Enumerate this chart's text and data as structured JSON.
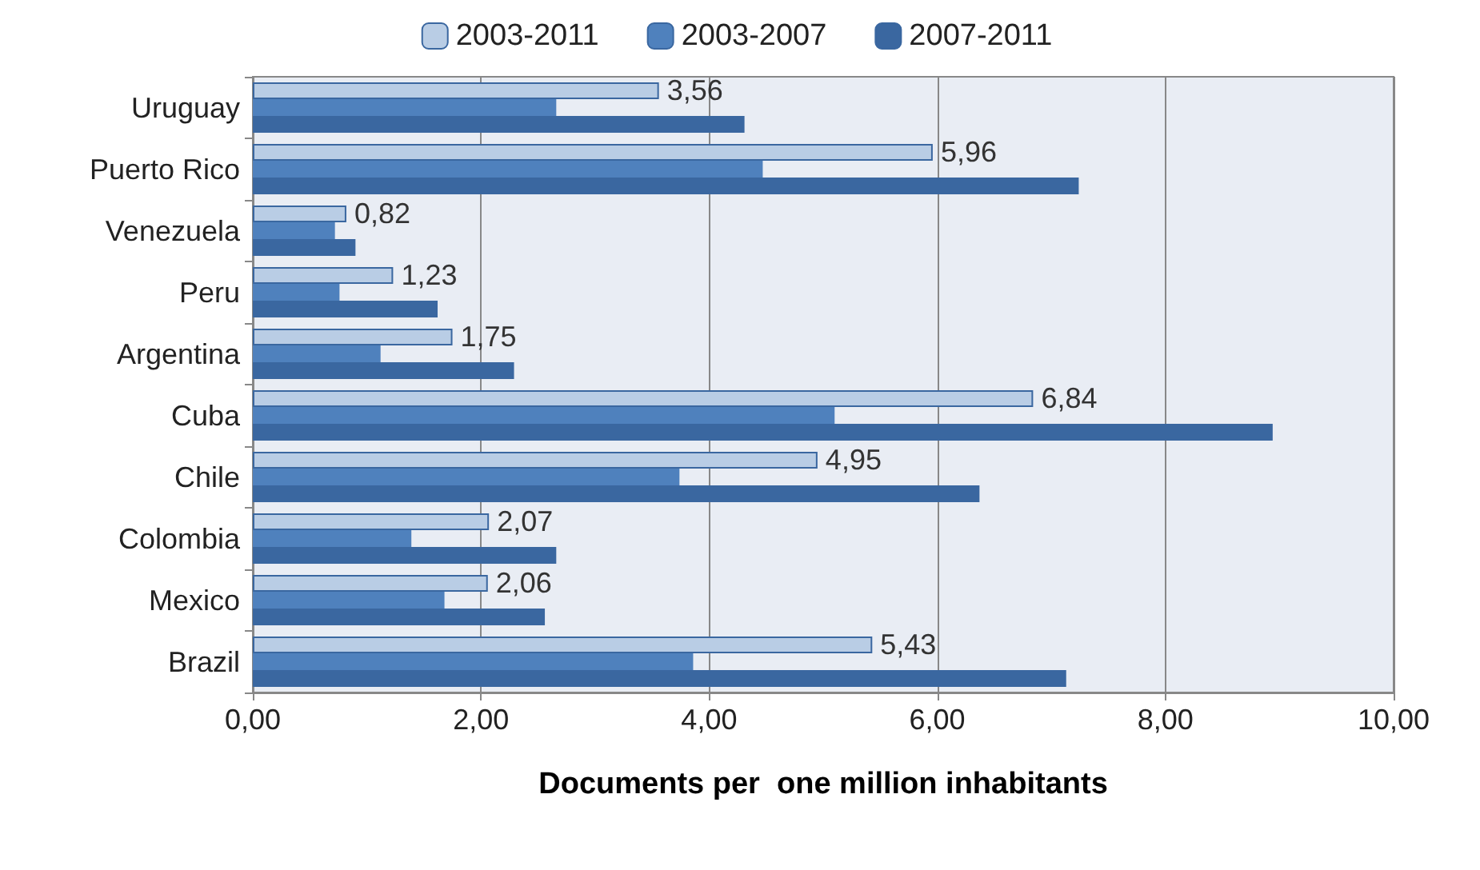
{
  "chart_data": {
    "type": "bar",
    "orientation": "horizontal",
    "xlabel": "Documents per  one million inhabitants",
    "categories": [
      "Uruguay",
      "Puerto Rico",
      "Venezuela",
      "Peru",
      "Argentina",
      "Cuba",
      "Chile",
      "Colombia",
      "Mexico",
      "Brazil"
    ],
    "series": [
      {
        "name": "2003-2011",
        "color": "#b9cde5",
        "values": [
          3.56,
          5.96,
          0.82,
          1.23,
          1.75,
          6.84,
          4.95,
          2.07,
          2.06,
          5.43
        ],
        "value_labels": [
          "3,56",
          "5,96",
          "0,82",
          "1,23",
          "1,75",
          "6,84",
          "4,95",
          "2,07",
          "2,06",
          "5,43"
        ]
      },
      {
        "name": "2003-2007",
        "color": "#4f81bd",
        "values": [
          2.66,
          4.47,
          0.72,
          0.76,
          1.12,
          5.1,
          3.74,
          1.39,
          1.68,
          3.86
        ]
      },
      {
        "name": "2007-2011",
        "color": "#3a67a0",
        "values": [
          4.31,
          7.24,
          0.9,
          1.62,
          2.29,
          8.94,
          6.37,
          2.66,
          2.56,
          7.13
        ]
      }
    ],
    "xlim": [
      0,
      10
    ],
    "xticks": [
      {
        "value": 0,
        "label": "0,00"
      },
      {
        "value": 2,
        "label": "2,00"
      },
      {
        "value": 4,
        "label": "4,00"
      },
      {
        "value": 6,
        "label": "6,00"
      },
      {
        "value": 8,
        "label": "8,00"
      },
      {
        "value": 10,
        "label": "10,00"
      }
    ],
    "grid": "x",
    "legend": "top"
  }
}
